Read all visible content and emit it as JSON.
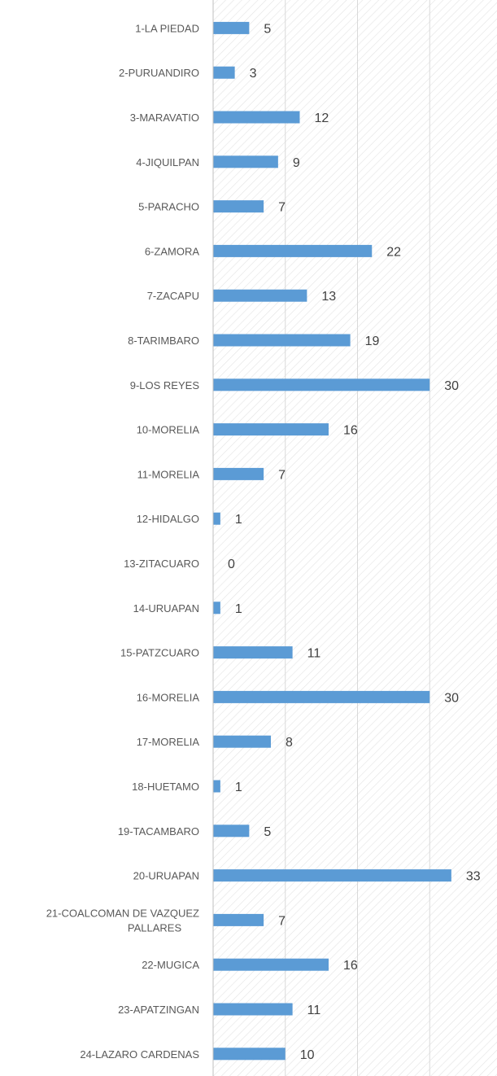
{
  "chart_data": {
    "type": "bar",
    "orientation": "horizontal",
    "categories": [
      "1-LA PIEDAD",
      "2-PURUANDIRO",
      "3-MARAVATIO",
      "4-JIQUILPAN",
      "5-PARACHO",
      "6-ZAMORA",
      "7-ZACAPU",
      "8-TARIMBARO",
      "9-LOS REYES",
      "10-MORELIA",
      "11-MORELIA",
      "12-HIDALGO",
      "13-ZITACUARO",
      "14-URUAPAN",
      "15-PATZCUARO",
      "16-MORELIA",
      "17-MORELIA",
      "18-HUETAMO",
      "19-TACAMBARO",
      "20-URUAPAN",
      "21-COALCOMAN DE VAZQUEZ PALLARES",
      "22-MUGICA",
      "23-APATZINGAN",
      "24-LAZARO CARDENAS"
    ],
    "values": [
      5,
      3,
      12,
      9,
      7,
      22,
      13,
      19,
      30,
      16,
      7,
      1,
      0,
      1,
      11,
      30,
      8,
      1,
      5,
      33,
      7,
      16,
      11,
      10
    ],
    "xlim": [
      0,
      40
    ],
    "grid": true,
    "data_labels": true,
    "title": "",
    "xlabel": "",
    "ylabel": "",
    "colors": {
      "bar": "#5B9BD5",
      "gridline": "#d9d9d9",
      "axis": "#bfbfbf",
      "hatch": "#e3e3e3",
      "text": "#595959"
    }
  }
}
